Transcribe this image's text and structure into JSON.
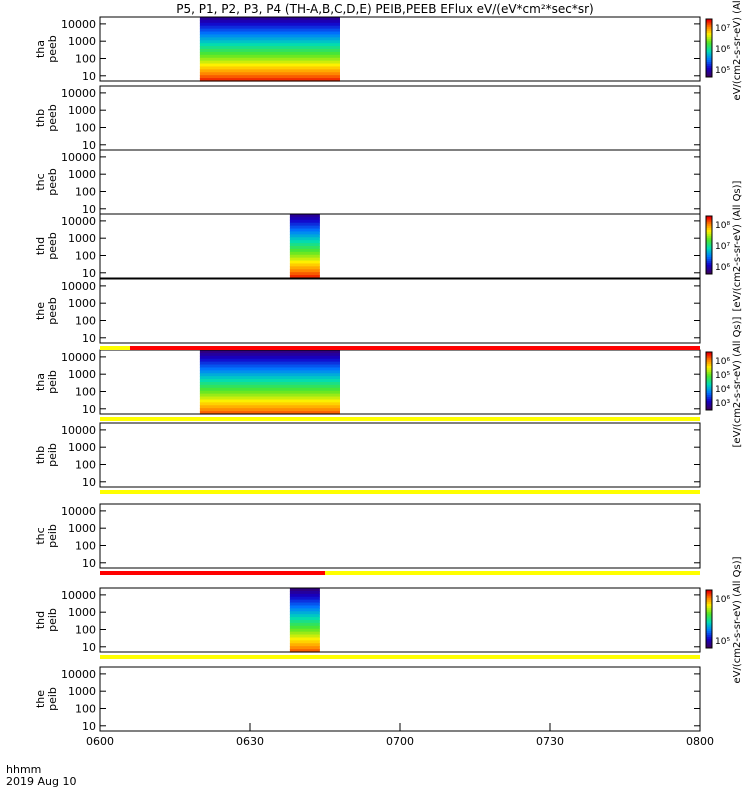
{
  "title": "P5, P1, P2, P3, P4 (TH-A,B,C,D,E) PEIB,PEEB EFlux eV/(eV*cm²*sec*sr)",
  "time_label_line1": "hhmm",
  "time_label_line2": "2019 Aug 10",
  "chart_data": {
    "type": "heatmap",
    "x_ticks": [
      "0600",
      "0630",
      "0700",
      "0730",
      "0800"
    ],
    "y_ticks": [
      "10",
      "100",
      "1000",
      "10000"
    ],
    "ylim": [
      5,
      25000
    ],
    "y_scale": "log",
    "panels": [
      {
        "label_top": "tha",
        "label_bottom": "peeb",
        "active": [
          [
            6.333,
            6.8
          ]
        ],
        "palette": "eflux_electron"
      },
      {
        "label_top": "thb",
        "label_bottom": "peeb",
        "active": [],
        "palette": "none"
      },
      {
        "label_top": "thc",
        "label_bottom": "peeb",
        "active": [],
        "palette": "none"
      },
      {
        "label_top": "thd",
        "label_bottom": "peeb",
        "active": [
          [
            6.633,
            6.733
          ]
        ],
        "palette": "eflux_electron_d"
      },
      {
        "label_top": "the",
        "label_bottom": "peeb",
        "active": [],
        "palette": "none"
      },
      {
        "label_top": "tha",
        "label_bottom": "peib",
        "active": [
          [
            6.333,
            6.8
          ]
        ],
        "palette": "eflux_ion"
      },
      {
        "label_top": "thb",
        "label_bottom": "peib",
        "active": [],
        "palette": "none"
      },
      {
        "label_top": "thc",
        "label_bottom": "peib",
        "active": [],
        "palette": "none"
      },
      {
        "label_top": "thd",
        "label_bottom": "peib",
        "active": [
          [
            6.633,
            6.733
          ]
        ],
        "palette": "eflux_ion_d"
      },
      {
        "label_top": "the",
        "label_bottom": "peib",
        "active": [],
        "palette": "none"
      }
    ],
    "status_bars": [
      {
        "after_panel": 4,
        "segments": [
          {
            "from": 6.0,
            "to": 6.1,
            "color": "#ffff00"
          },
          {
            "from": 6.1,
            "to": 8.0,
            "color": "#ff0000"
          }
        ]
      },
      {
        "after_panel": 5,
        "segments": [
          {
            "from": 6.0,
            "to": 8.0,
            "color": "#ffff00"
          }
        ]
      },
      {
        "after_panel": 6,
        "segments": [
          {
            "from": 6.0,
            "to": 8.0,
            "color": "#ffff00"
          }
        ]
      },
      {
        "after_panel": 7,
        "segments": [
          {
            "from": 6.0,
            "to": 6.75,
            "color": "#ff0000"
          },
          {
            "from": 6.75,
            "to": 8.0,
            "color": "#ffff00"
          }
        ]
      },
      {
        "after_panel": 8,
        "segments": [
          {
            "from": 6.0,
            "to": 8.0,
            "color": "#ffff00"
          }
        ]
      }
    ],
    "colorbars": [
      {
        "panel": 0,
        "ticks": [
          "10⁷",
          "10⁶",
          "10⁵"
        ],
        "label": "eV/(cm2-s-sr-eV) (All"
      },
      {
        "panel": 3,
        "ticks": [
          "10⁸",
          "10⁷",
          "10⁶"
        ],
        "label": "[eV/(cm2-s-sr-eV) (All Qs)]"
      },
      {
        "panel": 5,
        "ticks": [
          "10⁶",
          "10⁵",
          "10⁴",
          "10³"
        ],
        "label": "[eV/(cm2-s-sr-eV) (All Qs)]"
      },
      {
        "panel": 8,
        "ticks": [
          "10⁶",
          "10⁵"
        ],
        "label": "eV/(cm2-s-sr-eV) (All Qs)]"
      }
    ],
    "colors": {
      "axis": "#000000",
      "status_yellow": "#ffff00",
      "status_red": "#ff0000"
    }
  }
}
